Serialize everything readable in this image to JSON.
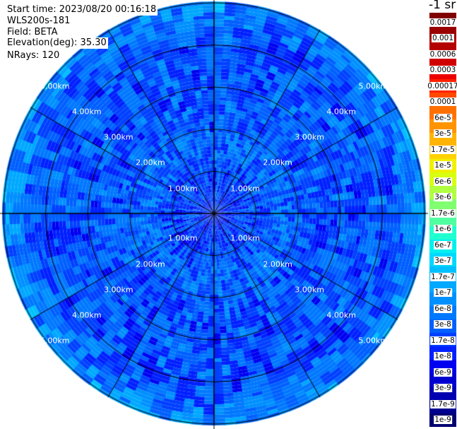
{
  "header": {
    "start_time": "Start time: 2023/08/20 00:16:18",
    "instrument": "WLS200s-181",
    "field": "Field: BETA",
    "elevation": "Elevation(deg): 35.30",
    "nrays": "NRays: 120"
  },
  "chart_data": {
    "type": "heatmap",
    "projection": "polar",
    "field": "BETA",
    "range_rings_km": [
      1,
      2,
      3,
      4,
      5
    ],
    "range_labels": [
      "1.00km",
      "2.00km",
      "3.00km",
      "4.00km",
      "5.00km"
    ],
    "spoke_interval_deg": 30,
    "colorbar": {
      "title": "-1 sr",
      "scale": "log",
      "range": [
        1e-09,
        0.0017
      ],
      "labels": [
        "0.0017",
        "0.001",
        "0.0006",
        "0.0003",
        "0.00017",
        "0.0001",
        "6e-5",
        "3e-5",
        "1.7e-5",
        "1e-5",
        "6e-6",
        "3e-6",
        "1.7e-6",
        "1e-6",
        "6e-7",
        "3e-7",
        "1.7e-7",
        "1e-7",
        "6e-8",
        "3e-8",
        "1.7e-8",
        "1e-8",
        "6e-9",
        "3e-9",
        "1.7e-9",
        "1e-9"
      ],
      "colors": [
        "#800000",
        "#9a0000",
        "#b40000",
        "#d00000",
        "#ec0000",
        "#ff2000",
        "#ff4a00",
        "#ff7000",
        "#ff9400",
        "#ffb400",
        "#ffd200",
        "#f0f000",
        "#d8ff10",
        "#b0ff40",
        "#80ff70",
        "#50ffa0",
        "#20ffd0",
        "#00f0f0",
        "#00d8ff",
        "#00c0ff",
        "#00a8ff",
        "#0090ff",
        "#0078ff",
        "#0060ff",
        "#0040ff",
        "#0020ff",
        "#0000f0",
        "#0000d0",
        "#0000b0",
        "#000090",
        "#000070"
      ]
    }
  }
}
